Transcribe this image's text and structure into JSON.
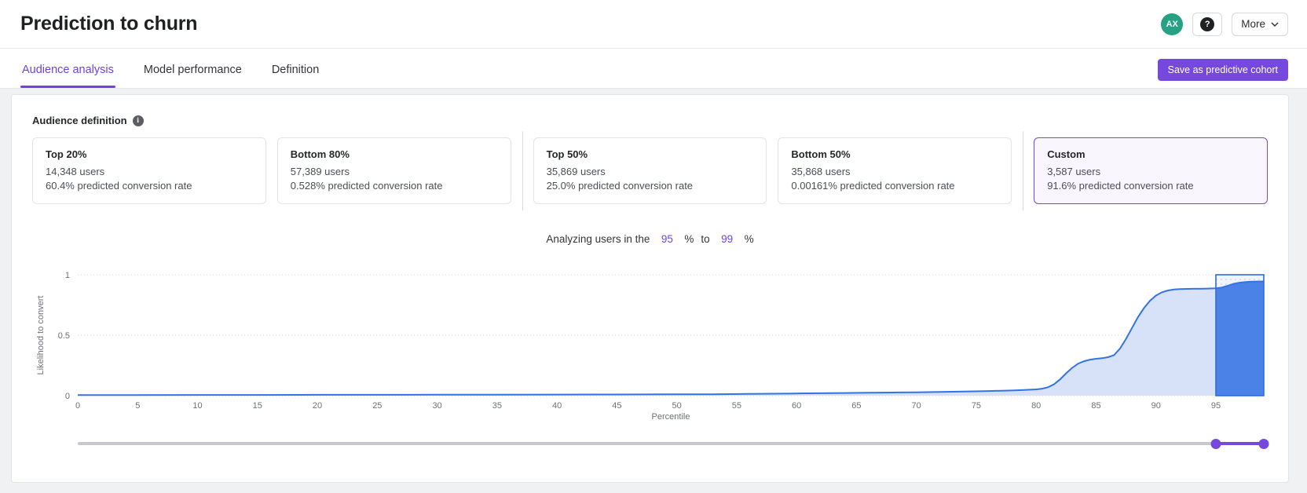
{
  "header": {
    "title": "Prediction to churn",
    "avatar_initials": "AX",
    "help_glyph": "?",
    "more_label": "More"
  },
  "tabs": [
    {
      "label": "Audience analysis",
      "active": true
    },
    {
      "label": "Model performance",
      "active": false
    },
    {
      "label": "Definition",
      "active": false
    }
  ],
  "actions": {
    "save_button": "Save as predictive cohort"
  },
  "audience": {
    "section_label": "Audience definition",
    "info_glyph": "i",
    "cards": [
      {
        "title": "Top 20%",
        "users": "14,348 users",
        "rate": "60.4% predicted conversion rate",
        "selected": false
      },
      {
        "title": "Bottom 80%",
        "users": "57,389 users",
        "rate": "0.528% predicted conversion rate",
        "selected": false
      },
      {
        "title": "Top 50%",
        "users": "35,869 users",
        "rate": "25.0% predicted conversion rate",
        "selected": false
      },
      {
        "title": "Bottom 50%",
        "users": "35,868 users",
        "rate": "0.00161% predicted conversion rate",
        "selected": false
      },
      {
        "title": "Custom",
        "users": "3,587 users",
        "rate": "91.6% predicted conversion rate",
        "selected": true
      }
    ]
  },
  "range_control": {
    "prefix": "Analyzing users in the",
    "from": "95",
    "unit_from": "%",
    "connector": "to",
    "to": "99",
    "unit_to": "%"
  },
  "chart_data": {
    "type": "area",
    "title": "",
    "xlabel": "Percentile",
    "ylabel": "Likelihood to convert",
    "xlim": [
      0,
      99
    ],
    "ylim": [
      0,
      1
    ],
    "x_ticks": [
      0,
      5,
      10,
      15,
      20,
      25,
      30,
      35,
      40,
      45,
      50,
      55,
      60,
      65,
      70,
      75,
      80,
      85,
      90,
      95
    ],
    "y_ticks": [
      0,
      0.5,
      1
    ],
    "grid": "dotted",
    "legend": "none",
    "points": [
      [
        0,
        0.005
      ],
      [
        5,
        0.005
      ],
      [
        10,
        0.006
      ],
      [
        15,
        0.006
      ],
      [
        20,
        0.007
      ],
      [
        25,
        0.007
      ],
      [
        30,
        0.008
      ],
      [
        35,
        0.008
      ],
      [
        40,
        0.009
      ],
      [
        45,
        0.01
      ],
      [
        50,
        0.011
      ],
      [
        53,
        0.012
      ],
      [
        56,
        0.014
      ],
      [
        58,
        0.016
      ],
      [
        60,
        0.018
      ],
      [
        62,
        0.02
      ],
      [
        64,
        0.022
      ],
      [
        66,
        0.024
      ],
      [
        68,
        0.026
      ],
      [
        70,
        0.028
      ],
      [
        72,
        0.031
      ],
      [
        74,
        0.034
      ],
      [
        76,
        0.038
      ],
      [
        78,
        0.043
      ],
      [
        79,
        0.047
      ],
      [
        80,
        0.052
      ],
      [
        80.5,
        0.058
      ],
      [
        81,
        0.07
      ],
      [
        81.5,
        0.095
      ],
      [
        82,
        0.135
      ],
      [
        82.5,
        0.185
      ],
      [
        83,
        0.23
      ],
      [
        83.5,
        0.265
      ],
      [
        84,
        0.285
      ],
      [
        84.5,
        0.298
      ],
      [
        85,
        0.305
      ],
      [
        85.5,
        0.31
      ],
      [
        86,
        0.318
      ],
      [
        86.5,
        0.335
      ],
      [
        87,
        0.39
      ],
      [
        87.5,
        0.47
      ],
      [
        88,
        0.56
      ],
      [
        88.5,
        0.65
      ],
      [
        89,
        0.725
      ],
      [
        89.5,
        0.785
      ],
      [
        90,
        0.828
      ],
      [
        90.5,
        0.855
      ],
      [
        91,
        0.87
      ],
      [
        91.5,
        0.878
      ],
      [
        92,
        0.882
      ],
      [
        93,
        0.884
      ],
      [
        94,
        0.885
      ],
      [
        95,
        0.888
      ],
      [
        95.5,
        0.895
      ],
      [
        96,
        0.91
      ],
      [
        96.5,
        0.925
      ],
      [
        97,
        0.935
      ],
      [
        97.5,
        0.94
      ],
      [
        98,
        0.943
      ],
      [
        99,
        0.945
      ]
    ],
    "selection": {
      "from": 95,
      "to": 99
    },
    "colors": {
      "line": "#3273e8",
      "area_fill": "#d7e2f8",
      "selection_fill": "#4a82e8",
      "selection_border": "#2e6ce0",
      "selection_bg": "#f2f4fb"
    }
  },
  "slider": {
    "min": 0,
    "max": 99,
    "from": 95,
    "to": 99,
    "color": "#7549dd"
  }
}
